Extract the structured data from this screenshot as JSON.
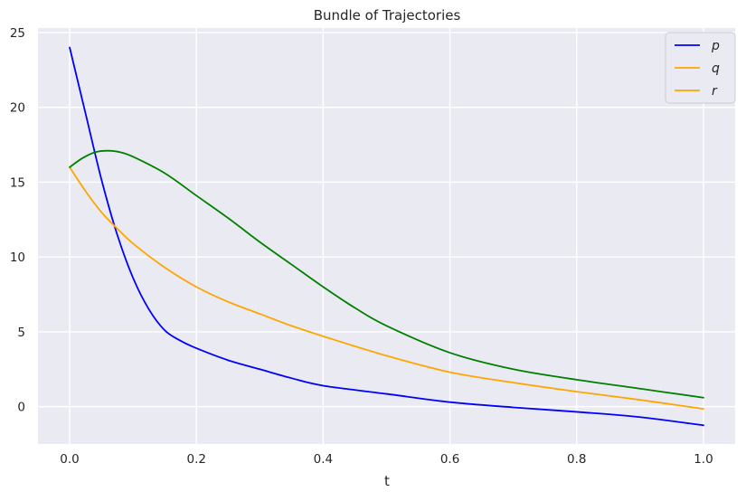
{
  "chart_data": {
    "type": "line",
    "title": "Bundle of Trajectories",
    "xlabel": "t",
    "ylabel": "",
    "xlim": [
      -0.05,
      1.05
    ],
    "ylim": [
      -2.5,
      25.3
    ],
    "xticks": [
      0.0,
      0.2,
      0.4,
      0.6,
      0.8,
      1.0
    ],
    "xtick_labels": [
      "0.0",
      "0.2",
      "0.4",
      "0.6",
      "0.8",
      "1.0"
    ],
    "yticks": [
      0,
      5,
      10,
      15,
      20,
      25
    ],
    "ytick_labels": [
      "0",
      "5",
      "10",
      "15",
      "20",
      "25"
    ],
    "grid": true,
    "legend_position": "upper right",
    "legend": [
      {
        "label": "p",
        "color": "#0000ff"
      },
      {
        "label": "q",
        "color": "#ffa500"
      },
      {
        "label": "r",
        "color": "#ffa500"
      }
    ],
    "series": [
      {
        "name": "p",
        "color": "#0000ff",
        "x": [
          0.0,
          0.025,
          0.05,
          0.075,
          0.1,
          0.125,
          0.15,
          0.175,
          0.2,
          0.25,
          0.3,
          0.35,
          0.4,
          0.5,
          0.6,
          0.7,
          0.8,
          0.9,
          1.0
        ],
        "y": [
          24.0,
          19.6,
          15.2,
          11.5,
          8.6,
          6.5,
          5.1,
          4.4,
          3.9,
          3.1,
          2.5,
          1.9,
          1.4,
          0.85,
          0.3,
          -0.05,
          -0.35,
          -0.7,
          -1.25
        ]
      },
      {
        "name": "",
        "color": "#ffa500",
        "x": [
          0.0,
          0.025,
          0.05,
          0.075,
          0.1,
          0.15,
          0.2,
          0.25,
          0.3,
          0.35,
          0.4,
          0.5,
          0.6,
          0.7,
          0.8,
          0.9,
          1.0
        ],
        "y": [
          16.0,
          14.4,
          13.0,
          11.9,
          10.9,
          9.3,
          8.0,
          7.0,
          6.2,
          5.4,
          4.7,
          3.4,
          2.3,
          1.6,
          1.0,
          0.45,
          -0.15
        ]
      },
      {
        "name": "",
        "color": "#008000",
        "x": [
          0.0,
          0.02,
          0.04,
          0.06,
          0.08,
          0.1,
          0.15,
          0.2,
          0.25,
          0.3,
          0.35,
          0.4,
          0.45,
          0.5,
          0.6,
          0.7,
          0.8,
          0.9,
          1.0
        ],
        "y": [
          16.0,
          16.6,
          17.0,
          17.1,
          17.0,
          16.7,
          15.6,
          14.1,
          12.6,
          11.0,
          9.5,
          8.0,
          6.6,
          5.4,
          3.6,
          2.5,
          1.8,
          1.2,
          0.6
        ]
      }
    ]
  },
  "colors": {
    "figure_bg": "#ffffff",
    "axes_bg": "#eaeaf2",
    "grid": "#ffffff",
    "text": "#262626",
    "legend_bg": "#eaeaf2",
    "legend_border": "#cccccc"
  }
}
